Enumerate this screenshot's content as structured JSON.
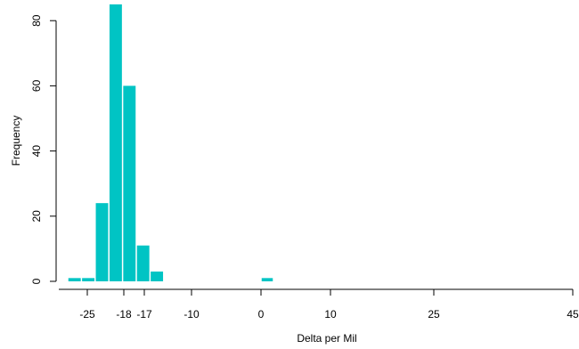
{
  "chart_data": {
    "type": "bar",
    "title": "",
    "xlabel": "Delta per Mil",
    "ylabel": "Frequency",
    "bar_color": "#00c4c4",
    "axis_color": "#000000",
    "grid": false,
    "legend": "none",
    "bin_width": 2,
    "bins": [
      {
        "start": -27,
        "end": -25,
        "count": 1
      },
      {
        "start": -25,
        "end": -23,
        "count": 1
      },
      {
        "start": -23,
        "end": -21,
        "count": 24
      },
      {
        "start": -21,
        "end": -19,
        "count": 85
      },
      {
        "start": -19,
        "end": -17,
        "count": 60
      },
      {
        "start": -17,
        "end": -15,
        "count": 11
      },
      {
        "start": -15,
        "end": -13,
        "count": 3
      },
      {
        "start": 0,
        "end": 2,
        "count": 1
      }
    ],
    "xlim": [
      -29,
      45
    ],
    "ylim": [
      0,
      85
    ],
    "x_ticks": [
      -25,
      -18,
      -17,
      -10,
      0,
      10,
      25,
      45
    ],
    "y_ticks": [
      0,
      20,
      40,
      60,
      80
    ]
  }
}
